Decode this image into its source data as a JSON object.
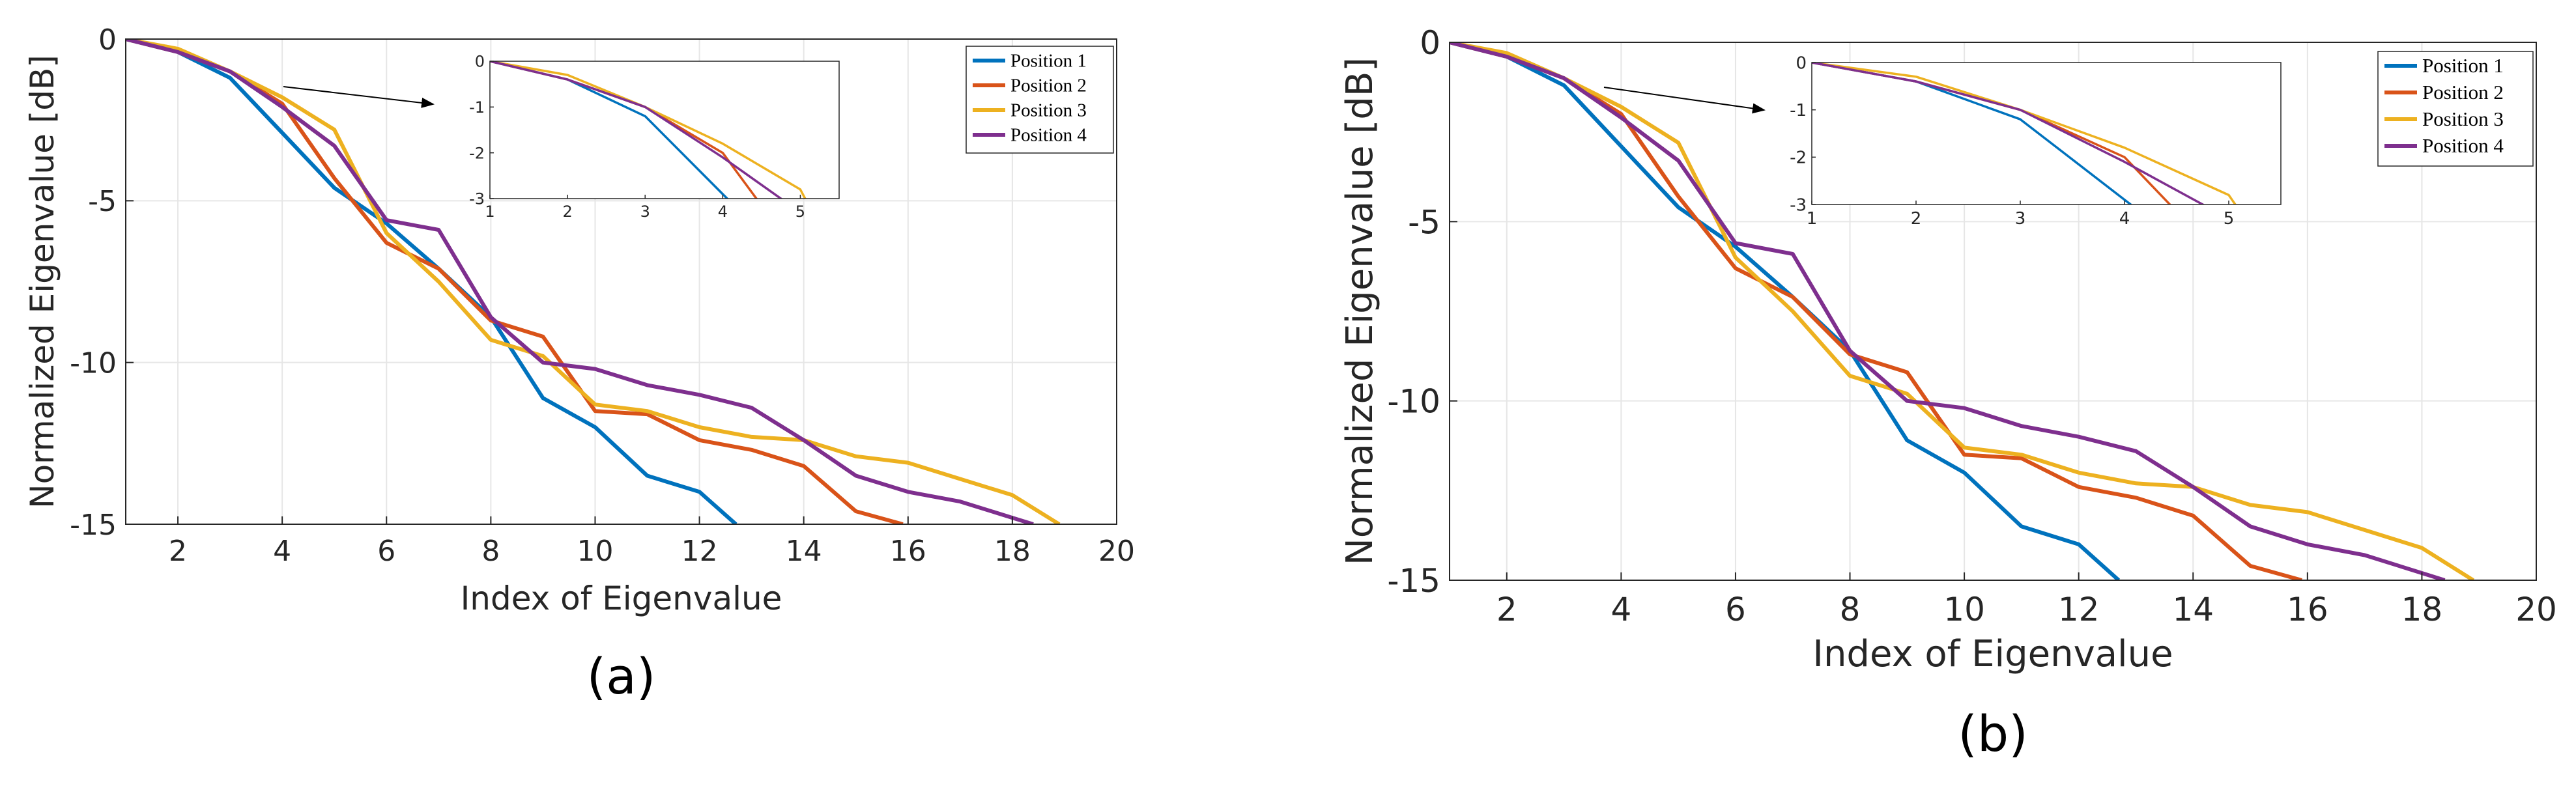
{
  "chart_data": [
    {
      "type": "line",
      "panel_label": "(a)",
      "xlabel": "Index of Eigenvalue",
      "ylabel": "Normalized Eigenvalue [dB]",
      "xlim": [
        1,
        20
      ],
      "ylim": [
        -15,
        0
      ],
      "xticks": [
        2,
        4,
        6,
        8,
        10,
        12,
        14,
        16,
        18,
        20
      ],
      "yticks": [
        0,
        -5,
        -10,
        -15
      ],
      "xtick_labels": [
        "2",
        "4",
        "6",
        "8",
        "10",
        "12",
        "14",
        "16",
        "18",
        "20"
      ],
      "ytick_labels": [
        "0",
        "-5",
        "-10",
        "-15"
      ],
      "grid": true,
      "legend_position": "top-right",
      "series": [
        {
          "name": "Position 1",
          "color": "#0072BD",
          "x": [
            1,
            2,
            3,
            4,
            5,
            6,
            7,
            8,
            9,
            10,
            11,
            12,
            12.7
          ],
          "y": [
            0,
            -0.4,
            -1.2,
            -2.9,
            -4.6,
            -5.7,
            -7.1,
            -8.6,
            -11.1,
            -12.0,
            -13.5,
            -14.0,
            -15.0
          ]
        },
        {
          "name": "Position 2",
          "color": "#D95319",
          "x": [
            1,
            2,
            3,
            4,
            5,
            6,
            7,
            8,
            9,
            10,
            11,
            12,
            13,
            14,
            15,
            15.9
          ],
          "y": [
            0,
            -0.4,
            -1.0,
            -2.0,
            -4.3,
            -6.3,
            -7.1,
            -8.7,
            -9.2,
            -11.5,
            -11.6,
            -12.4,
            -12.7,
            -13.2,
            -14.6,
            -15.0
          ]
        },
        {
          "name": "Position 3",
          "color": "#EDB120",
          "x": [
            1,
            2,
            3,
            4,
            5,
            6,
            7,
            8,
            9,
            10,
            11,
            12,
            13,
            14,
            15,
            16,
            17,
            18,
            18.9
          ],
          "y": [
            0,
            -0.3,
            -1.0,
            -1.8,
            -2.8,
            -6.0,
            -7.5,
            -9.3,
            -9.8,
            -11.3,
            -11.5,
            -12.0,
            -12.3,
            -12.4,
            -12.9,
            -13.1,
            -13.6,
            -14.1,
            -15.0
          ]
        },
        {
          "name": "Position 4",
          "color": "#7E2F8E",
          "x": [
            1,
            2,
            3,
            4,
            5,
            6,
            7,
            8,
            9,
            10,
            11,
            12,
            13,
            14,
            15,
            16,
            17,
            18,
            18.4
          ],
          "y": [
            0,
            -0.4,
            -1.0,
            -2.1,
            -3.3,
            -5.6,
            -5.9,
            -8.6,
            -10.0,
            -10.2,
            -10.7,
            -11.0,
            -11.4,
            -12.4,
            -13.5,
            -14.0,
            -14.3,
            -14.8,
            -15.0
          ]
        }
      ],
      "inset": {
        "xlim": [
          1,
          5.5
        ],
        "ylim": [
          -3,
          0
        ],
        "xticks": [
          1,
          2,
          3,
          4,
          5
        ],
        "yticks": [
          0,
          -1,
          -2,
          -3
        ],
        "xtick_labels": [
          "1",
          "2",
          "3",
          "4",
          "5"
        ],
        "ytick_labels": [
          "0",
          "-1",
          "-2",
          "-3"
        ]
      }
    },
    {
      "type": "line",
      "panel_label": "(b)",
      "xlabel": "Index of Eigenvalue",
      "ylabel": "Normalized Eigenvalue [dB]",
      "xlim": [
        1,
        20
      ],
      "ylim": [
        -15,
        0
      ],
      "xticks": [
        2,
        4,
        6,
        8,
        10,
        12,
        14,
        16,
        18,
        20
      ],
      "yticks": [
        0,
        -5,
        -10,
        -15
      ],
      "xtick_labels": [
        "2",
        "4",
        "6",
        "8",
        "10",
        "12",
        "14",
        "16",
        "18",
        "20"
      ],
      "ytick_labels": [
        "0",
        "-5",
        "-10",
        "-15"
      ],
      "grid": true,
      "legend_position": "top-right",
      "series": [
        {
          "name": "Position 1",
          "color": "#0072BD",
          "x": [
            1,
            2,
            3,
            4,
            5,
            6,
            7,
            8,
            9,
            10,
            11,
            12,
            12.7
          ],
          "y": [
            0,
            -0.4,
            -1.2,
            -2.9,
            -4.6,
            -5.7,
            -7.1,
            -8.6,
            -11.1,
            -12.0,
            -13.5,
            -14.0,
            -15.0
          ]
        },
        {
          "name": "Position 2",
          "color": "#D95319",
          "x": [
            1,
            2,
            3,
            4,
            5,
            6,
            7,
            8,
            9,
            10,
            11,
            12,
            13,
            14,
            15,
            15.9
          ],
          "y": [
            0,
            -0.4,
            -1.0,
            -2.0,
            -4.3,
            -6.3,
            -7.1,
            -8.7,
            -9.2,
            -11.5,
            -11.6,
            -12.4,
            -12.7,
            -13.2,
            -14.6,
            -15.0
          ]
        },
        {
          "name": "Position 3",
          "color": "#EDB120",
          "x": [
            1,
            2,
            3,
            4,
            5,
            6,
            7,
            8,
            9,
            10,
            11,
            12,
            13,
            14,
            15,
            16,
            17,
            18,
            18.9
          ],
          "y": [
            0,
            -0.3,
            -1.0,
            -1.8,
            -2.8,
            -6.0,
            -7.5,
            -9.3,
            -9.8,
            -11.3,
            -11.5,
            -12.0,
            -12.3,
            -12.4,
            -12.9,
            -13.1,
            -13.6,
            -14.1,
            -15.0
          ]
        },
        {
          "name": "Position 4",
          "color": "#7E2F8E",
          "x": [
            1,
            2,
            3,
            4,
            5,
            6,
            7,
            8,
            9,
            10,
            11,
            12,
            13,
            14,
            15,
            16,
            17,
            18,
            18.4
          ],
          "y": [
            0,
            -0.4,
            -1.0,
            -2.1,
            -3.3,
            -5.6,
            -5.9,
            -8.6,
            -10.0,
            -10.2,
            -10.7,
            -11.0,
            -11.4,
            -12.4,
            -13.5,
            -14.0,
            -14.3,
            -14.8,
            -15.0
          ]
        }
      ],
      "inset": {
        "xlim": [
          1,
          5.5
        ],
        "ylim": [
          -3,
          0
        ],
        "xticks": [
          1,
          2,
          3,
          4,
          5
        ],
        "yticks": [
          0,
          -1,
          -2,
          -3
        ],
        "xtick_labels": [
          "1",
          "2",
          "3",
          "4",
          "5"
        ],
        "ytick_labels": [
          "0",
          "-1",
          "-2",
          "-3"
        ]
      }
    }
  ]
}
